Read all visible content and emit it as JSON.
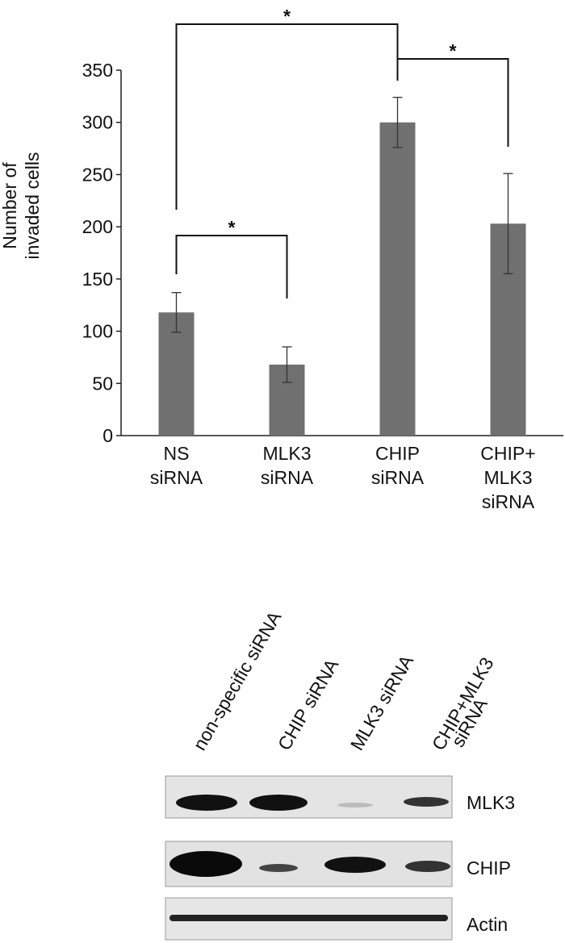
{
  "chart_data": {
    "type": "bar",
    "ylabel": [
      "Number of",
      "invaded cells"
    ],
    "categories": [
      "NS siRNA",
      "MLK3 siRNA",
      "CHIP siRNA",
      "CHIP+ MLK3 siRNA"
    ],
    "values": [
      118,
      68,
      300,
      203
    ],
    "errors": [
      19,
      17,
      24,
      48
    ],
    "color": "#707070",
    "ylim": [
      0,
      350
    ],
    "yticks": [
      0,
      50,
      100,
      150,
      200,
      250,
      300,
      350
    ],
    "annotations": [
      "*",
      "*",
      "*"
    ]
  },
  "blot": {
    "lanes": [
      [
        "non-specific siRNA"
      ],
      [
        "CHIP siRNA"
      ],
      [
        "MLK3 siRNA"
      ],
      [
        "CHIP+MLK3",
        "siRNA"
      ]
    ],
    "rows": [
      "MLK3",
      "CHIP",
      "Actin"
    ]
  }
}
